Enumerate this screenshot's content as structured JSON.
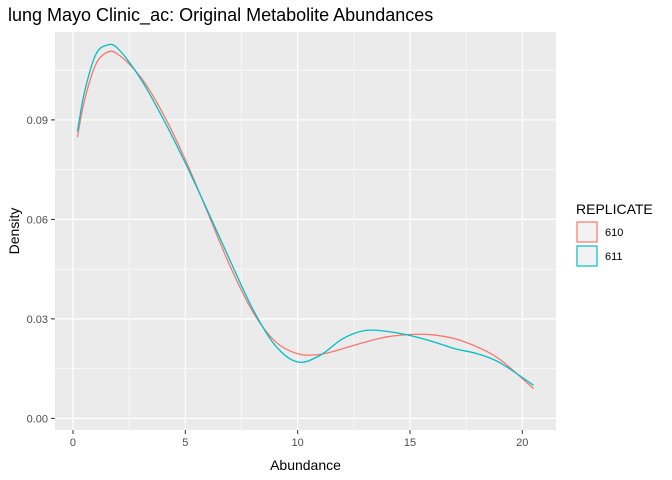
{
  "chart_data": {
    "type": "line",
    "title": "lung Mayo Clinic_ac: Original Metabolite Abundances",
    "xlabel": "Abundance",
    "ylabel": "Density",
    "xlim": [
      -0.8,
      21.5
    ],
    "ylim": [
      -0.0035,
      0.1165
    ],
    "xticks": [
      0,
      5,
      10,
      15,
      20
    ],
    "xtick_labels": [
      "0",
      "5",
      "10",
      "15",
      "20"
    ],
    "yticks": [
      0.0,
      0.03,
      0.06,
      0.09
    ],
    "ytick_labels": [
      "0.00",
      "0.03",
      "0.06",
      "0.09"
    ],
    "grid": true,
    "legend": {
      "title": "REPLICATE",
      "placement": "right"
    },
    "series": [
      {
        "name": "610",
        "color": "#F8766D",
        "x": [
          0.2,
          0.5,
          1.0,
          1.5,
          2.0,
          3.0,
          4.0,
          5.0,
          6.0,
          7.0,
          8.0,
          9.0,
          10.0,
          11.0,
          12.0,
          13.0,
          14.0,
          15.0,
          16.0,
          17.0,
          18.0,
          19.0,
          20.5
        ],
        "y": [
          0.0848,
          0.0955,
          0.1065,
          0.1103,
          0.1098,
          0.103,
          0.092,
          0.078,
          0.062,
          0.0458,
          0.0322,
          0.0232,
          0.0195,
          0.0193,
          0.021,
          0.023,
          0.0246,
          0.0253,
          0.0252,
          0.024,
          0.0215,
          0.0178,
          0.009
        ]
      },
      {
        "name": "611",
        "color": "#00BFC4",
        "x": [
          0.2,
          0.5,
          1.0,
          1.5,
          2.0,
          3.0,
          4.0,
          5.0,
          6.0,
          7.0,
          8.0,
          9.0,
          10.0,
          11.0,
          12.0,
          13.0,
          14.0,
          15.0,
          16.0,
          17.0,
          18.0,
          19.0,
          20.5
        ],
        "y": [
          0.0865,
          0.098,
          0.1095,
          0.1125,
          0.1115,
          0.1025,
          0.0905,
          0.077,
          0.0625,
          0.0475,
          0.033,
          0.022,
          0.017,
          0.019,
          0.024,
          0.0265,
          0.0262,
          0.025,
          0.0232,
          0.021,
          0.0195,
          0.0168,
          0.01
        ]
      }
    ]
  }
}
